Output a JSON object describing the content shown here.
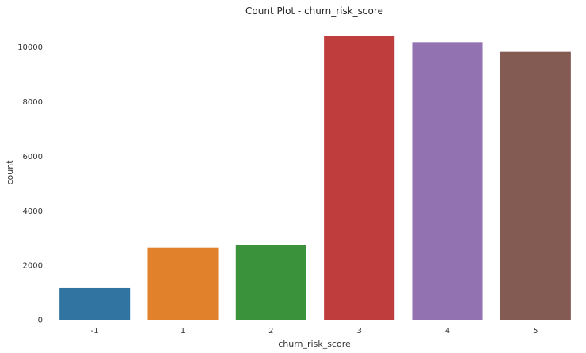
{
  "chart_data": {
    "type": "bar",
    "title": "Count Plot - churn_risk_score",
    "xlabel": "churn_risk_score",
    "ylabel": "count",
    "categories": [
      "-1",
      "1",
      "2",
      "3",
      "4",
      "5"
    ],
    "values": [
      1163,
      2652,
      2741,
      10424,
      10185,
      9827
    ],
    "colors": [
      "#3274a1",
      "#e1812c",
      "#3a923a",
      "#c03d3e",
      "#9372b2",
      "#845b53"
    ],
    "ylim": [
      0,
      10950
    ],
    "yticks": [
      0,
      2000,
      4000,
      6000,
      8000,
      10000
    ],
    "grid": false,
    "legend": "none"
  }
}
